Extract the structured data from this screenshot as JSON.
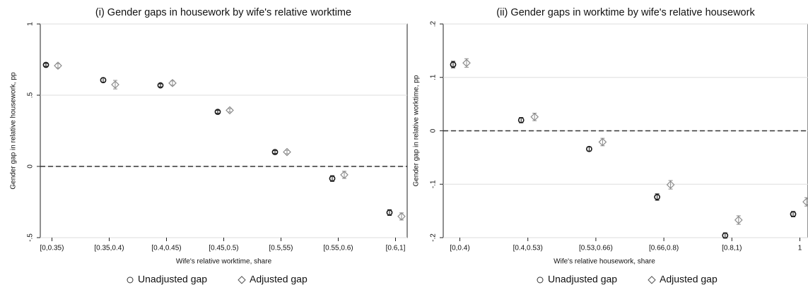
{
  "chart_data": [
    {
      "type": "scatter",
      "title": "(i) Gender gaps in housework by wife's relative worktime",
      "x_label": "Wife's relative worktime, share",
      "y_label": "Gender gap in relative housework, pp",
      "categories": [
        "[0,0.35)",
        "[0.35,0.4)",
        "[0.4,0.45)",
        "[0.45,0.5)",
        "[0.5,55)",
        "[0.55,0.6)",
        "[0.6,1]"
      ],
      "series": [
        {
          "name": "Unadjusted gap",
          "color": "#1a1a1a",
          "marker": "circle",
          "values": [
            0.713,
            0.606,
            0.569,
            0.383,
            0.101,
            -0.085,
            -0.324
          ],
          "errors": [
            0.01,
            0.015,
            0.01,
            0.01,
            0.01,
            0.02,
            0.02
          ]
        },
        {
          "name": "Adjusted gap",
          "color": "#8c8c8c",
          "marker": "diamond",
          "values": [
            0.707,
            0.574,
            0.585,
            0.394,
            0.101,
            -0.059,
            -0.351
          ],
          "errors": [
            0.015,
            0.03,
            0.015,
            0.012,
            0.012,
            0.025,
            0.025
          ]
        }
      ],
      "ylim": [
        -0.5,
        1
      ],
      "yticks": [
        {
          "value": -0.5,
          "label": "-.5"
        },
        0,
        {
          "value": 0.5,
          "label": ".5"
        },
        1
      ],
      "reference_line": 0,
      "grid": true
    },
    {
      "type": "scatter",
      "title": "(ii) Gender gaps in worktime by wife's relative housework",
      "x_label": "Wife's relative housework, share",
      "y_label": "Gender gap in relative worktime, pp",
      "categories": [
        "[0,0.4)",
        "[0.4,0.53)",
        "[0.53,0.66)",
        "[0.66,0.8)",
        "[0.8,1)",
        "1"
      ],
      "series": [
        {
          "name": "Unadjusted gap",
          "color": "#1a1a1a",
          "marker": "circle",
          "values": [
            0.124,
            0.02,
            -0.034,
            -0.124,
            -0.196,
            -0.156
          ],
          "errors": [
            0.006,
            0.005,
            0.004,
            0.006,
            0.005,
            0.005
          ]
        },
        {
          "name": "Adjusted gap",
          "color": "#8c8c8c",
          "marker": "diamond",
          "values": [
            0.127,
            0.026,
            -0.021,
            -0.101,
            -0.167,
            -0.133
          ],
          "errors": [
            0.008,
            0.007,
            0.007,
            0.008,
            0.008,
            0.008
          ]
        }
      ],
      "ylim": [
        -0.2,
        0.2
      ],
      "yticks": [
        {
          "value": -0.2,
          "label": "-.2"
        },
        {
          "value": -0.1,
          "label": "-.1"
        },
        0,
        {
          "value": 0.1,
          "label": ".1"
        },
        {
          "value": 0.2,
          "label": ".2"
        }
      ],
      "reference_line": 0,
      "grid": true
    }
  ]
}
